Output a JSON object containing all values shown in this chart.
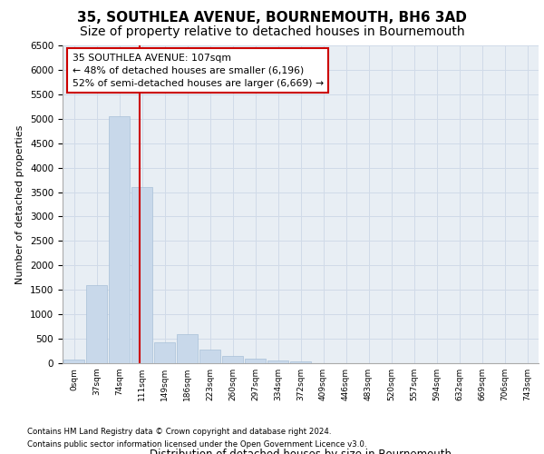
{
  "title_line1": "35, SOUTHLEA AVENUE, BOURNEMOUTH, BH6 3AD",
  "title_line2": "Size of property relative to detached houses in Bournemouth",
  "xlabel": "Distribution of detached houses by size in Bournemouth",
  "ylabel": "Number of detached properties",
  "bar_values": [
    75,
    1600,
    5050,
    3600,
    425,
    600,
    280,
    150,
    90,
    60,
    30,
    0,
    0,
    0,
    0,
    0,
    0,
    0,
    0,
    0,
    0
  ],
  "bar_labels": [
    "0sqm",
    "37sqm",
    "74sqm",
    "111sqm",
    "149sqm",
    "186sqm",
    "223sqm",
    "260sqm",
    "297sqm",
    "334sqm",
    "372sqm",
    "409sqm",
    "446sqm",
    "483sqm",
    "520sqm",
    "557sqm",
    "594sqm",
    "632sqm",
    "669sqm",
    "706sqm",
    "743sqm"
  ],
  "bar_color": "#c8d8ea",
  "bar_edge_color": "#a8c0d8",
  "grid_color": "#d0dae8",
  "background_color": "#e8eef4",
  "fig_background": "#ffffff",
  "ylim_max": 6500,
  "yticks": [
    0,
    500,
    1000,
    1500,
    2000,
    2500,
    3000,
    3500,
    4000,
    4500,
    5000,
    5500,
    6000,
    6500
  ],
  "vline_x": 2.89,
  "vline_color": "#cc0000",
  "annotation_text": "35 SOUTHLEA AVENUE: 107sqm\n← 48% of detached houses are smaller (6,196)\n52% of semi-detached houses are larger (6,669) →",
  "annotation_box_facecolor": "#ffffff",
  "annotation_box_edgecolor": "#cc0000",
  "footer_line1": "Contains HM Land Registry data © Crown copyright and database right 2024.",
  "footer_line2": "Contains public sector information licensed under the Open Government Licence v3.0.",
  "title_fontsize": 11,
  "subtitle_fontsize": 10,
  "bar_width": 0.92
}
